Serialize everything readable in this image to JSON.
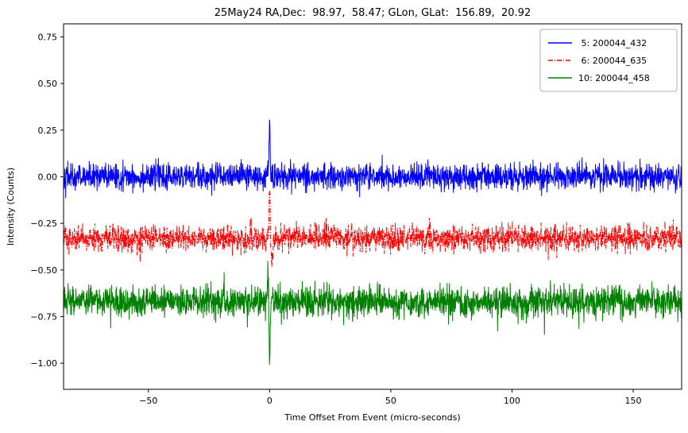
{
  "chart_data": {
    "type": "line",
    "title": "25May24 RA,Dec:  98.97,  58.47; GLon, GLat:  156.89,  20.92",
    "xlabel": "Time Offset From Event (micro-seconds)",
    "ylabel": "Intensity (Counts)",
    "xlim": [
      -85,
      170
    ],
    "ylim": [
      -1.14,
      0.82
    ],
    "xticks": [
      -50,
      0,
      50,
      100,
      150
    ],
    "yticks": [
      0.75,
      0.5,
      0.25,
      0.0,
      -0.25,
      -0.5,
      -0.75,
      -1.0
    ],
    "grid": false,
    "legend_position": "upper right",
    "background_color": "#ffffff",
    "axis_color": "#000000",
    "n_points": 2600,
    "seed": 42,
    "series": [
      {
        "label": " 5: 200044_432",
        "color": "#0000ff",
        "linestyle": "solid",
        "baseline": 0.0,
        "noise_std": 0.035,
        "spike_components": [
          {
            "dx": 0.0,
            "amp": 0.32,
            "width": 0.3
          }
        ],
        "description": "noisy trace centered at 0.00 counts with sharp positive spike to +0.32 at time offset 0"
      },
      {
        "label": " 6: 200044_635",
        "color": "#ff0000",
        "linestyle": "dashdot",
        "baseline": -0.33,
        "noise_std": 0.034,
        "spike_components": [
          {
            "dx": 0.0,
            "amp": 0.33,
            "width": 0.25
          },
          {
            "dx": 0.9,
            "amp": -0.14,
            "width": 0.55
          }
        ],
        "description": "noisy trace centered at -0.33 counts with bipolar spike up to ~0.00 and down to ~-0.47 at time offset 0"
      },
      {
        "label": "10: 200044_458",
        "color": "#008000",
        "linestyle": "solid",
        "baseline": -0.67,
        "noise_std": 0.04,
        "spike_components": [
          {
            "dx": 0.0,
            "amp": -0.36,
            "width": 0.3
          },
          {
            "dx": -0.7,
            "amp": 0.17,
            "width": 0.3
          }
        ],
        "description": "noisy trace centered at -0.67 counts with sharp negative spike to -1.03 at time offset 0"
      }
    ]
  }
}
